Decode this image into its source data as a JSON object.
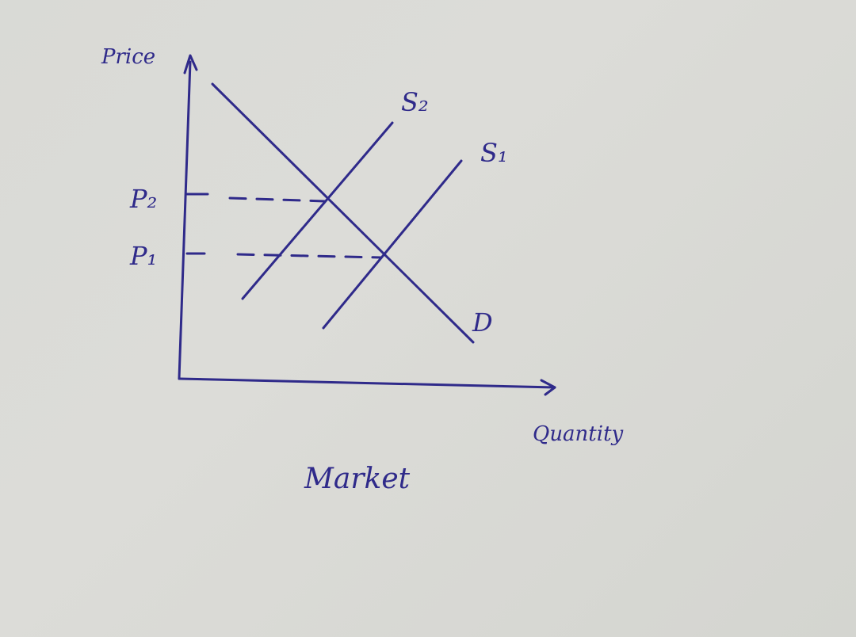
{
  "diagram": {
    "title": "Market",
    "y_axis_label": "Price",
    "x_axis_label": "Quantity",
    "curves": {
      "supply_1": "S₁",
      "supply_2": "S₂",
      "demand": "D"
    },
    "price_levels": {
      "p1": "P₁",
      "p2": "P₂"
    },
    "ink_color": "#2f2a8a",
    "paper_color": "#dadbd7"
  }
}
